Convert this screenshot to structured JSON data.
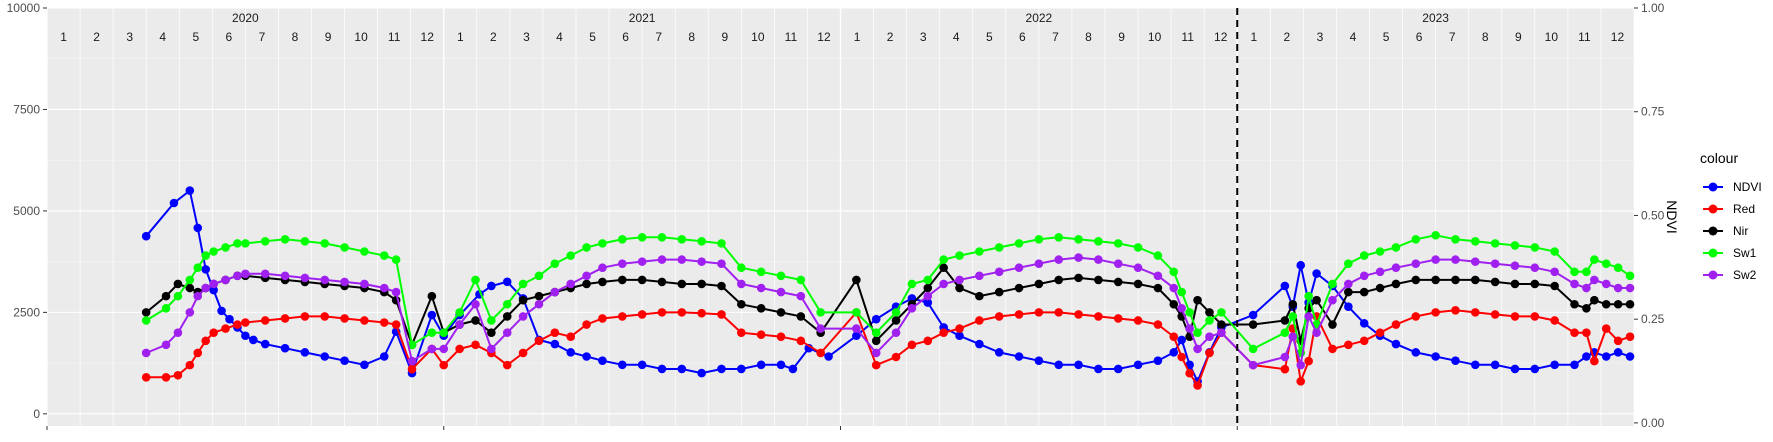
{
  "chart_data": {
    "type": "line",
    "title": "",
    "xlabel": "",
    "ylabel": "",
    "y2label": "NDVI",
    "ylim": [
      -300,
      10000
    ],
    "y2lim": [
      -0.0075,
      1.0
    ],
    "y_ticks": [
      0,
      2500,
      5000,
      7500,
      10000
    ],
    "y2_ticks": [
      0.0,
      0.25,
      0.5,
      0.75,
      1.0
    ],
    "y2_tick_labels": [
      "0.00",
      "0.25",
      "0.50",
      "0.75",
      "1.00"
    ],
    "years": [
      "2020",
      "2021",
      "2022",
      "2023"
    ],
    "months": [
      "1",
      "2",
      "3",
      "4",
      "5",
      "6",
      "7",
      "8",
      "9",
      "10",
      "11",
      "12"
    ],
    "x_start": 2020.0,
    "x_end": 2024.0,
    "vline_x": 2023.0,
    "grid": true,
    "legend": {
      "title": "colour",
      "position": "right"
    },
    "series": [
      {
        "name": "NDVI",
        "color": "#0000ff",
        "axis": "right",
        "x": [
          2020.25,
          2020.32,
          2020.36,
          2020.38,
          2020.4,
          2020.42,
          2020.44,
          2020.46,
          2020.48,
          2020.5,
          2020.52,
          2020.55,
          2020.6,
          2020.65,
          2020.7,
          2020.75,
          2020.8,
          2020.85,
          2020.88,
          2020.92,
          2020.97,
          2021.0,
          2021.04,
          2021.09,
          2021.12,
          2021.16,
          2021.2,
          2021.24,
          2021.28,
          2021.32,
          2021.36,
          2021.4,
          2021.45,
          2021.5,
          2021.55,
          2021.6,
          2021.65,
          2021.7,
          2021.75,
          2021.8,
          2021.85,
          2021.88,
          2021.92,
          2021.97,
          2022.04,
          2022.09,
          2022.14,
          2022.18,
          2022.22,
          2022.26,
          2022.3,
          2022.35,
          2022.4,
          2022.45,
          2022.5,
          2022.55,
          2022.6,
          2022.65,
          2022.7,
          2022.75,
          2022.8,
          2022.84,
          2022.86,
          2022.88,
          2022.9,
          2022.93,
          2022.96,
          2023.04,
          2023.12,
          2023.14,
          2023.16,
          2023.18,
          2023.2,
          2023.24,
          2023.28,
          2023.32,
          2023.36,
          2023.4,
          2023.45,
          2023.5,
          2023.55,
          2023.6,
          2023.65,
          2023.7,
          2023.75,
          2023.8,
          2023.85,
          2023.88,
          2023.9,
          2023.93,
          2023.96,
          2023.99
        ],
        "values": [
          0.45,
          0.53,
          0.56,
          0.47,
          0.37,
          0.32,
          0.27,
          0.25,
          0.23,
          0.21,
          0.2,
          0.19,
          0.18,
          0.17,
          0.16,
          0.15,
          0.14,
          0.16,
          0.22,
          0.12,
          0.26,
          0.21,
          0.26,
          0.31,
          0.33,
          0.34,
          0.3,
          0.2,
          0.19,
          0.17,
          0.16,
          0.15,
          0.14,
          0.14,
          0.13,
          0.13,
          0.12,
          0.13,
          0.13,
          0.14,
          0.14,
          0.13,
          0.18,
          0.16,
          0.21,
          0.25,
          0.28,
          0.3,
          0.29,
          0.23,
          0.21,
          0.19,
          0.17,
          0.16,
          0.15,
          0.14,
          0.14,
          0.13,
          0.13,
          0.14,
          0.15,
          0.17,
          0.2,
          0.14,
          0.1,
          0.17,
          0.23,
          0.26,
          0.33,
          0.28,
          0.38,
          0.29,
          0.36,
          0.33,
          0.28,
          0.24,
          0.21,
          0.19,
          0.17,
          0.16,
          0.15,
          0.14,
          0.14,
          0.13,
          0.13,
          0.14,
          0.14,
          0.16,
          0.17,
          0.16,
          0.17,
          0.16
        ]
      },
      {
        "name": "Red",
        "color": "#ff0000",
        "axis": "left",
        "x": [
          2020.25,
          2020.3,
          2020.33,
          2020.36,
          2020.38,
          2020.4,
          2020.42,
          2020.45,
          2020.48,
          2020.5,
          2020.55,
          2020.6,
          2020.65,
          2020.7,
          2020.75,
          2020.8,
          2020.85,
          2020.88,
          2020.92,
          2020.97,
          2021.0,
          2021.04,
          2021.08,
          2021.12,
          2021.16,
          2021.2,
          2021.24,
          2021.28,
          2021.32,
          2021.36,
          2021.4,
          2021.45,
          2021.5,
          2021.55,
          2021.6,
          2021.65,
          2021.7,
          2021.75,
          2021.8,
          2021.85,
          2021.9,
          2021.95,
          2022.04,
          2022.09,
          2022.14,
          2022.18,
          2022.22,
          2022.26,
          2022.3,
          2022.35,
          2022.4,
          2022.45,
          2022.5,
          2022.55,
          2022.6,
          2022.65,
          2022.7,
          2022.75,
          2022.8,
          2022.84,
          2022.86,
          2022.88,
          2022.9,
          2022.93,
          2022.96,
          2023.04,
          2023.12,
          2023.14,
          2023.16,
          2023.18,
          2023.2,
          2023.24,
          2023.28,
          2023.32,
          2023.36,
          2023.4,
          2023.45,
          2023.5,
          2023.55,
          2023.6,
          2023.65,
          2023.7,
          2023.75,
          2023.8,
          2023.85,
          2023.88,
          2023.9,
          2023.93,
          2023.96,
          2023.99
        ],
        "values": [
          900,
          900,
          950,
          1200,
          1500,
          1800,
          2000,
          2100,
          2200,
          2250,
          2300,
          2350,
          2400,
          2400,
          2350,
          2300,
          2250,
          2200,
          1100,
          1600,
          1200,
          1600,
          1700,
          1500,
          1200,
          1500,
          1800,
          2000,
          1900,
          2200,
          2350,
          2400,
          2450,
          2500,
          2500,
          2480,
          2450,
          2000,
          1950,
          1900,
          1800,
          1500,
          2500,
          1200,
          1400,
          1700,
          1800,
          2000,
          2100,
          2300,
          2400,
          2450,
          2500,
          2500,
          2450,
          2400,
          2350,
          2300,
          2200,
          1900,
          1400,
          1000,
          700,
          1500,
          2000,
          1200,
          1100,
          2100,
          800,
          1300,
          2400,
          1600,
          1700,
          1800,
          2000,
          2200,
          2400,
          2500,
          2550,
          2500,
          2450,
          2400,
          2400,
          2300,
          2000,
          2000,
          1300,
          2100,
          1800,
          1900
        ]
      },
      {
        "name": "Nir",
        "color": "#000000",
        "axis": "left",
        "x": [
          2020.25,
          2020.3,
          2020.33,
          2020.36,
          2020.38,
          2020.4,
          2020.42,
          2020.45,
          2020.48,
          2020.5,
          2020.55,
          2020.6,
          2020.65,
          2020.7,
          2020.75,
          2020.8,
          2020.85,
          2020.88,
          2020.92,
          2020.97,
          2021.0,
          2021.04,
          2021.08,
          2021.12,
          2021.16,
          2021.2,
          2021.24,
          2021.28,
          2021.32,
          2021.36,
          2021.4,
          2021.45,
          2021.5,
          2021.55,
          2021.6,
          2021.65,
          2021.7,
          2021.75,
          2021.8,
          2021.85,
          2021.9,
          2021.95,
          2022.04,
          2022.09,
          2022.14,
          2022.18,
          2022.22,
          2022.26,
          2022.3,
          2022.35,
          2022.4,
          2022.45,
          2022.5,
          2022.55,
          2022.6,
          2022.65,
          2022.7,
          2022.75,
          2022.8,
          2022.84,
          2022.86,
          2022.88,
          2022.9,
          2022.93,
          2022.96,
          2023.04,
          2023.12,
          2023.14,
          2023.16,
          2023.18,
          2023.2,
          2023.24,
          2023.28,
          2023.32,
          2023.36,
          2023.4,
          2023.45,
          2023.5,
          2023.55,
          2023.6,
          2023.65,
          2023.7,
          2023.75,
          2023.8,
          2023.85,
          2023.88,
          2023.9,
          2023.93,
          2023.96,
          2023.99
        ],
        "values": [
          2500,
          2900,
          3200,
          3100,
          3000,
          3100,
          3200,
          3300,
          3400,
          3400,
          3350,
          3300,
          3250,
          3200,
          3150,
          3100,
          3000,
          2800,
          1700,
          2900,
          2000,
          2200,
          2300,
          2000,
          2400,
          2800,
          2900,
          3000,
          3100,
          3200,
          3250,
          3300,
          3300,
          3250,
          3200,
          3200,
          3150,
          2700,
          2600,
          2500,
          2400,
          2000,
          3300,
          1800,
          2300,
          2700,
          3100,
          3600,
          3100,
          2900,
          3000,
          3100,
          3200,
          3300,
          3350,
          3300,
          3250,
          3200,
          3100,
          2700,
          2400,
          1900,
          2800,
          2500,
          2200,
          2200,
          2300,
          2700,
          1800,
          2600,
          2800,
          2200,
          3000,
          3000,
          3100,
          3200,
          3300,
          3300,
          3300,
          3300,
          3250,
          3200,
          3200,
          3150,
          2700,
          2600,
          2800,
          2700,
          2700,
          2700
        ]
      },
      {
        "name": "Sw1",
        "color": "#00ff00",
        "axis": "left",
        "x": [
          2020.25,
          2020.3,
          2020.33,
          2020.36,
          2020.38,
          2020.4,
          2020.42,
          2020.45,
          2020.48,
          2020.5,
          2020.55,
          2020.6,
          2020.65,
          2020.7,
          2020.75,
          2020.8,
          2020.85,
          2020.88,
          2020.92,
          2020.97,
          2021.0,
          2021.04,
          2021.08,
          2021.12,
          2021.16,
          2021.2,
          2021.24,
          2021.28,
          2021.32,
          2021.36,
          2021.4,
          2021.45,
          2021.5,
          2021.55,
          2021.6,
          2021.65,
          2021.7,
          2021.75,
          2021.8,
          2021.85,
          2021.9,
          2021.95,
          2022.04,
          2022.09,
          2022.14,
          2022.18,
          2022.22,
          2022.26,
          2022.3,
          2022.35,
          2022.4,
          2022.45,
          2022.5,
          2022.55,
          2022.6,
          2022.65,
          2022.7,
          2022.75,
          2022.8,
          2022.84,
          2022.86,
          2022.88,
          2022.9,
          2022.93,
          2022.96,
          2023.04,
          2023.12,
          2023.14,
          2023.16,
          2023.18,
          2023.2,
          2023.24,
          2023.28,
          2023.32,
          2023.36,
          2023.4,
          2023.45,
          2023.5,
          2023.55,
          2023.6,
          2023.65,
          2023.7,
          2023.75,
          2023.8,
          2023.85,
          2023.88,
          2023.9,
          2023.93,
          2023.96,
          2023.99
        ],
        "values": [
          2300,
          2600,
          2900,
          3300,
          3600,
          3900,
          4000,
          4100,
          4200,
          4200,
          4250,
          4300,
          4250,
          4200,
          4100,
          4000,
          3900,
          3800,
          1700,
          2000,
          2000,
          2500,
          3300,
          2300,
          2700,
          3200,
          3400,
          3700,
          3900,
          4100,
          4200,
          4300,
          4350,
          4350,
          4300,
          4250,
          4200,
          3600,
          3500,
          3400,
          3300,
          2500,
          2500,
          2000,
          2500,
          3200,
          3300,
          3800,
          3900,
          4000,
          4100,
          4200,
          4300,
          4350,
          4300,
          4250,
          4200,
          4100,
          3900,
          3500,
          3000,
          2500,
          2000,
          2300,
          2500,
          1600,
          2000,
          2400,
          1500,
          2900,
          2200,
          3200,
          3700,
          3900,
          4000,
          4100,
          4300,
          4400,
          4300,
          4250,
          4200,
          4150,
          4100,
          4000,
          3500,
          3500,
          3800,
          3700,
          3600,
          3400
        ]
      },
      {
        "name": "Sw2",
        "color": "#a020f0",
        "axis": "left",
        "x": [
          2020.25,
          2020.3,
          2020.33,
          2020.36,
          2020.38,
          2020.4,
          2020.42,
          2020.45,
          2020.48,
          2020.5,
          2020.55,
          2020.6,
          2020.65,
          2020.7,
          2020.75,
          2020.8,
          2020.85,
          2020.88,
          2020.92,
          2020.97,
          2021.0,
          2021.04,
          2021.08,
          2021.12,
          2021.16,
          2021.2,
          2021.24,
          2021.28,
          2021.32,
          2021.36,
          2021.4,
          2021.45,
          2021.5,
          2021.55,
          2021.6,
          2021.65,
          2021.7,
          2021.75,
          2021.8,
          2021.85,
          2021.9,
          2021.95,
          2022.04,
          2022.09,
          2022.14,
          2022.18,
          2022.22,
          2022.26,
          2022.3,
          2022.35,
          2022.4,
          2022.45,
          2022.5,
          2022.55,
          2022.6,
          2022.65,
          2022.7,
          2022.75,
          2022.8,
          2022.84,
          2022.86,
          2022.88,
          2022.9,
          2022.93,
          2022.96,
          2023.04,
          2023.12,
          2023.14,
          2023.16,
          2023.18,
          2023.2,
          2023.24,
          2023.28,
          2023.32,
          2023.36,
          2023.4,
          2023.45,
          2023.5,
          2023.55,
          2023.6,
          2023.65,
          2023.7,
          2023.75,
          2023.8,
          2023.85,
          2023.88,
          2023.9,
          2023.93,
          2023.96,
          2023.99
        ],
        "values": [
          1500,
          1700,
          2000,
          2500,
          2900,
          3100,
          3200,
          3300,
          3400,
          3450,
          3450,
          3400,
          3350,
          3300,
          3250,
          3200,
          3100,
          3000,
          1300,
          1600,
          1600,
          2200,
          2700,
          1600,
          2000,
          2400,
          2700,
          3000,
          3200,
          3400,
          3600,
          3700,
          3750,
          3800,
          3800,
          3750,
          3700,
          3200,
          3100,
          3000,
          2900,
          2100,
          2100,
          1500,
          2000,
          2600,
          2900,
          3200,
          3300,
          3400,
          3500,
          3600,
          3700,
          3800,
          3850,
          3800,
          3700,
          3600,
          3400,
          3100,
          2600,
          2100,
          1600,
          1900,
          2000,
          1200,
          1400,
          1900,
          1200,
          2400,
          2000,
          2800,
          3200,
          3400,
          3500,
          3600,
          3700,
          3800,
          3800,
          3750,
          3700,
          3650,
          3600,
          3500,
          3200,
          3100,
          3300,
          3200,
          3100,
          3100
        ]
      }
    ]
  }
}
